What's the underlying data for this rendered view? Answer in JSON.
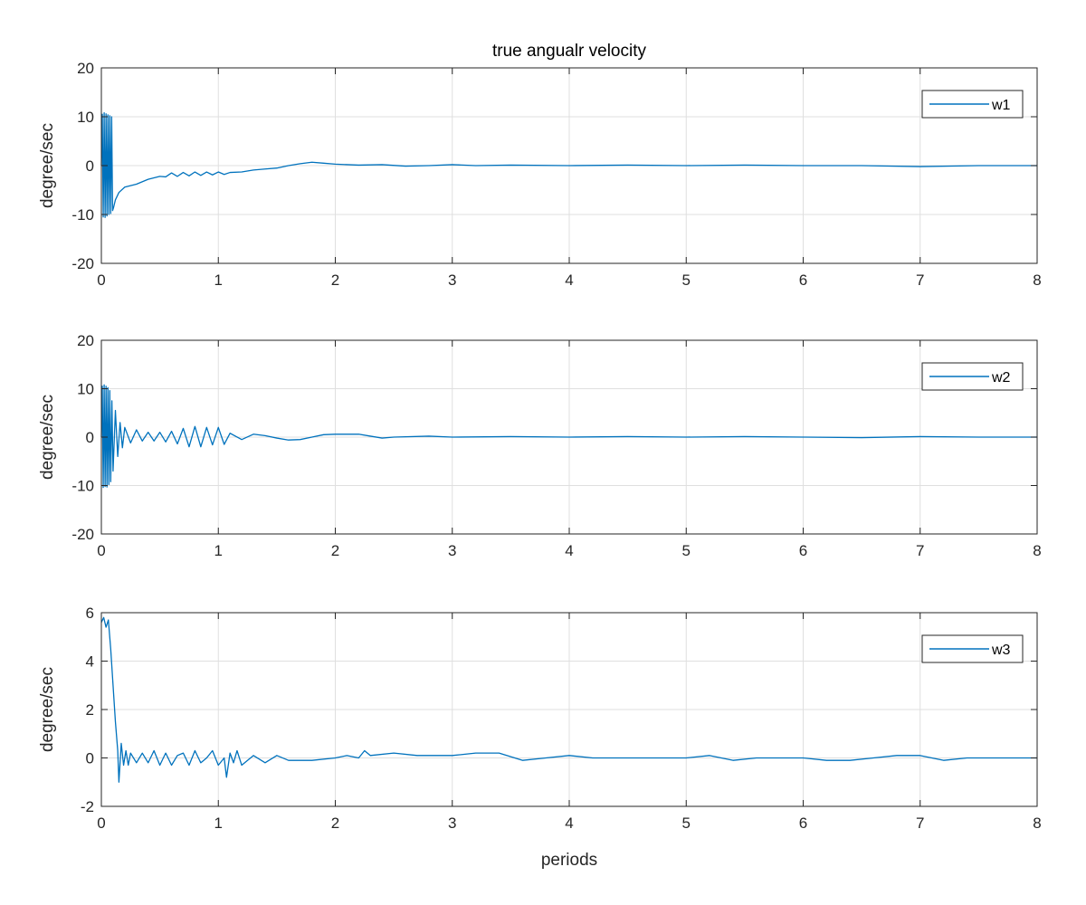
{
  "figure": {
    "title": "true angualr velocity",
    "xlabel": "periods"
  },
  "chart_data": [
    {
      "type": "line",
      "title": "true angualr velocity",
      "xlabel": "",
      "ylabel": "degree/sec",
      "xlim": [
        0,
        8
      ],
      "ylim": [
        -20,
        20
      ],
      "xticks": [
        0,
        1,
        2,
        3,
        4,
        5,
        6,
        7,
        8
      ],
      "yticks": [
        -20,
        -10,
        0,
        10,
        20
      ],
      "grid": true,
      "legend_position": "top-right",
      "series": [
        {
          "name": "w1",
          "color": "#0072BD",
          "points": [
            [
              0,
              0
            ],
            [
              0.008,
              10.5
            ],
            [
              0.016,
              -10.5
            ],
            [
              0.024,
              10.8
            ],
            [
              0.032,
              -10.6
            ],
            [
              0.04,
              10.6
            ],
            [
              0.048,
              -10.3
            ],
            [
              0.056,
              10.4
            ],
            [
              0.064,
              -10.0
            ],
            [
              0.072,
              10.2
            ],
            [
              0.08,
              -9.8
            ],
            [
              0.088,
              10.0
            ],
            [
              0.096,
              -9.2
            ],
            [
              0.104,
              -8.6
            ],
            [
              0.12,
              -7.0
            ],
            [
              0.15,
              -5.5
            ],
            [
              0.2,
              -4.4
            ],
            [
              0.3,
              -3.8
            ],
            [
              0.4,
              -2.8
            ],
            [
              0.5,
              -2.2
            ],
            [
              0.55,
              -2.3
            ],
            [
              0.6,
              -1.5
            ],
            [
              0.65,
              -2.2
            ],
            [
              0.7,
              -1.4
            ],
            [
              0.75,
              -2.1
            ],
            [
              0.8,
              -1.3
            ],
            [
              0.85,
              -2.0
            ],
            [
              0.9,
              -1.3
            ],
            [
              0.95,
              -1.9
            ],
            [
              1.0,
              -1.3
            ],
            [
              1.05,
              -1.8
            ],
            [
              1.1,
              -1.4
            ],
            [
              1.2,
              -1.3
            ],
            [
              1.3,
              -0.9
            ],
            [
              1.4,
              -0.7
            ],
            [
              1.5,
              -0.5
            ],
            [
              1.6,
              0.0
            ],
            [
              1.7,
              0.4
            ],
            [
              1.8,
              0.7
            ],
            [
              1.9,
              0.5
            ],
            [
              2.0,
              0.3
            ],
            [
              2.2,
              0.1
            ],
            [
              2.4,
              0.2
            ],
            [
              2.6,
              -0.1
            ],
            [
              2.8,
              0.0
            ],
            [
              3.0,
              0.2
            ],
            [
              3.2,
              0.0
            ],
            [
              3.5,
              0.1
            ],
            [
              4.0,
              0.0
            ],
            [
              4.5,
              0.1
            ],
            [
              5.0,
              0.0
            ],
            [
              5.5,
              0.1
            ],
            [
              6.0,
              0.0
            ],
            [
              6.5,
              0.0
            ],
            [
              7.0,
              -0.2
            ],
            [
              7.5,
              0.0
            ],
            [
              8.0,
              0.0
            ]
          ]
        }
      ]
    },
    {
      "type": "line",
      "title": "",
      "xlabel": "",
      "ylabel": "degree/sec",
      "xlim": [
        0,
        8
      ],
      "ylim": [
        -20,
        20
      ],
      "xticks": [
        0,
        1,
        2,
        3,
        4,
        5,
        6,
        7,
        8
      ],
      "yticks": [
        -20,
        -10,
        0,
        10,
        20
      ],
      "grid": true,
      "legend_position": "top-right",
      "series": [
        {
          "name": "w2",
          "color": "#0072BD",
          "points": [
            [
              0,
              0
            ],
            [
              0.008,
              10.5
            ],
            [
              0.016,
              -10.4
            ],
            [
              0.024,
              10.8
            ],
            [
              0.032,
              -10.2
            ],
            [
              0.04,
              10.5
            ],
            [
              0.048,
              -10.3
            ],
            [
              0.056,
              10.2
            ],
            [
              0.064,
              -9.8
            ],
            [
              0.072,
              9.6
            ],
            [
              0.08,
              -9.2
            ],
            [
              0.09,
              7.5
            ],
            [
              0.1,
              -7.0
            ],
            [
              0.12,
              5.5
            ],
            [
              0.14,
              -4.0
            ],
            [
              0.16,
              3.0
            ],
            [
              0.18,
              -2.2
            ],
            [
              0.2,
              2.0
            ],
            [
              0.25,
              -1.2
            ],
            [
              0.3,
              1.5
            ],
            [
              0.35,
              -0.8
            ],
            [
              0.4,
              1.0
            ],
            [
              0.45,
              -0.8
            ],
            [
              0.5,
              1.0
            ],
            [
              0.55,
              -1.0
            ],
            [
              0.6,
              1.2
            ],
            [
              0.65,
              -1.4
            ],
            [
              0.7,
              1.8
            ],
            [
              0.75,
              -2.0
            ],
            [
              0.8,
              2.2
            ],
            [
              0.85,
              -2.0
            ],
            [
              0.9,
              2.0
            ],
            [
              0.95,
              -1.6
            ],
            [
              1.0,
              2.0
            ],
            [
              1.05,
              -1.5
            ],
            [
              1.1,
              0.8
            ],
            [
              1.2,
              -0.5
            ],
            [
              1.3,
              0.6
            ],
            [
              1.4,
              0.3
            ],
            [
              1.5,
              -0.2
            ],
            [
              1.6,
              -0.6
            ],
            [
              1.7,
              -0.5
            ],
            [
              1.8,
              0.0
            ],
            [
              1.9,
              0.5
            ],
            [
              2.0,
              0.6
            ],
            [
              2.2,
              0.6
            ],
            [
              2.3,
              0.2
            ],
            [
              2.4,
              -0.2
            ],
            [
              2.5,
              0.0
            ],
            [
              2.8,
              0.2
            ],
            [
              3.0,
              0.0
            ],
            [
              3.5,
              0.1
            ],
            [
              4.0,
              0.0
            ],
            [
              4.5,
              0.1
            ],
            [
              5.0,
              0.0
            ],
            [
              5.5,
              0.1
            ],
            [
              6.0,
              0.0
            ],
            [
              6.5,
              -0.1
            ],
            [
              7.0,
              0.1
            ],
            [
              7.5,
              0.0
            ],
            [
              8.0,
              0.0
            ]
          ]
        }
      ]
    },
    {
      "type": "line",
      "title": "",
      "xlabel": "periods",
      "ylabel": "degree/sec",
      "xlim": [
        0,
        8
      ],
      "ylim": [
        -2,
        6
      ],
      "xticks": [
        0,
        1,
        2,
        3,
        4,
        5,
        6,
        7,
        8
      ],
      "yticks": [
        -2,
        0,
        2,
        4,
        6
      ],
      "grid": true,
      "legend_position": "top-right",
      "series": [
        {
          "name": "w3",
          "color": "#0072BD",
          "points": [
            [
              0,
              5.6
            ],
            [
              0.02,
              5.8
            ],
            [
              0.04,
              5.4
            ],
            [
              0.06,
              5.7
            ],
            [
              0.08,
              4.5
            ],
            [
              0.1,
              3.0
            ],
            [
              0.12,
              1.5
            ],
            [
              0.14,
              0.3
            ],
            [
              0.15,
              -1.0
            ],
            [
              0.17,
              0.6
            ],
            [
              0.19,
              -0.3
            ],
            [
              0.21,
              0.3
            ],
            [
              0.23,
              -0.3
            ],
            [
              0.25,
              0.2
            ],
            [
              0.3,
              -0.2
            ],
            [
              0.35,
              0.2
            ],
            [
              0.4,
              -0.2
            ],
            [
              0.45,
              0.3
            ],
            [
              0.5,
              -0.3
            ],
            [
              0.55,
              0.2
            ],
            [
              0.6,
              -0.3
            ],
            [
              0.65,
              0.1
            ],
            [
              0.7,
              0.2
            ],
            [
              0.75,
              -0.3
            ],
            [
              0.8,
              0.3
            ],
            [
              0.85,
              -0.2
            ],
            [
              0.9,
              0.0
            ],
            [
              0.95,
              0.3
            ],
            [
              1.0,
              -0.3
            ],
            [
              1.05,
              0.0
            ],
            [
              1.07,
              -0.8
            ],
            [
              1.1,
              0.2
            ],
            [
              1.13,
              -0.2
            ],
            [
              1.16,
              0.3
            ],
            [
              1.2,
              -0.3
            ],
            [
              1.3,
              0.1
            ],
            [
              1.4,
              -0.2
            ],
            [
              1.5,
              0.1
            ],
            [
              1.6,
              -0.1
            ],
            [
              1.8,
              -0.1
            ],
            [
              2.0,
              0.0
            ],
            [
              2.1,
              0.1
            ],
            [
              2.2,
              0.0
            ],
            [
              2.25,
              0.3
            ],
            [
              2.3,
              0.1
            ],
            [
              2.5,
              0.2
            ],
            [
              2.7,
              0.1
            ],
            [
              3.0,
              0.1
            ],
            [
              3.2,
              0.2
            ],
            [
              3.4,
              0.2
            ],
            [
              3.6,
              -0.1
            ],
            [
              3.8,
              0.0
            ],
            [
              4.0,
              0.1
            ],
            [
              4.2,
              0.0
            ],
            [
              4.4,
              0.0
            ],
            [
              4.6,
              0.0
            ],
            [
              4.8,
              0.0
            ],
            [
              5.0,
              0.0
            ],
            [
              5.2,
              0.1
            ],
            [
              5.4,
              -0.1
            ],
            [
              5.6,
              0.0
            ],
            [
              5.8,
              0.0
            ],
            [
              6.0,
              0.0
            ],
            [
              6.2,
              -0.1
            ],
            [
              6.4,
              -0.1
            ],
            [
              6.6,
              0.0
            ],
            [
              6.8,
              0.1
            ],
            [
              7.0,
              0.1
            ],
            [
              7.2,
              -0.1
            ],
            [
              7.4,
              0.0
            ],
            [
              7.6,
              0.0
            ],
            [
              7.8,
              0.0
            ],
            [
              8.0,
              0.0
            ]
          ]
        }
      ]
    }
  ]
}
